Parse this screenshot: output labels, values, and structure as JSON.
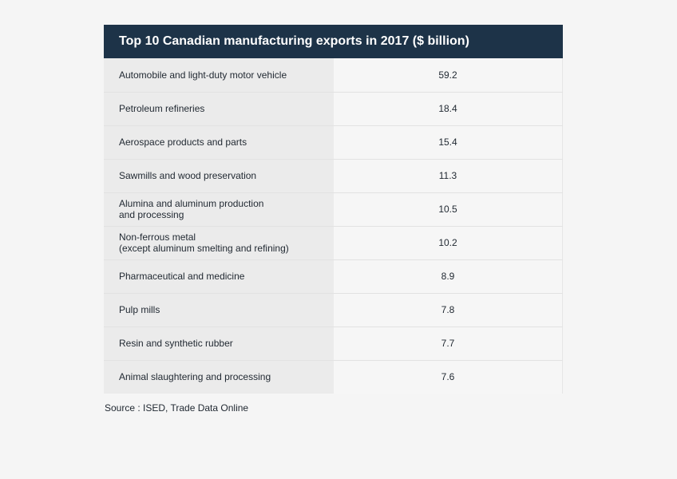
{
  "chart_data": {
    "type": "table",
    "title": "Top 10 Canadian manufacturing exports in 2017 ($ billion)",
    "categories": [
      "Automobile and light-duty motor vehicle",
      "Petroleum refineries",
      "Aerospace products and parts",
      "Sawmills and wood preservation",
      "Alumina and aluminum production\nand processing",
      "Non-ferrous metal\n(except aluminum smelting and refining)",
      "Pharmaceutical and medicine",
      "Pulp mills",
      "Resin and synthetic rubber",
      "Animal slaughtering and processing"
    ],
    "values": [
      "59.2",
      "18.4",
      "15.4",
      "11.3",
      "10.5",
      "10.2",
      "8.9",
      "7.8",
      "7.7",
      "7.6"
    ],
    "source": "Source : ISED, Trade Data Online"
  },
  "colors": {
    "header_bg": "#1d3348",
    "label_bg": "#ebebeb",
    "value_bg": "#f6f6f6",
    "page_bg": "#f5f5f5"
  }
}
